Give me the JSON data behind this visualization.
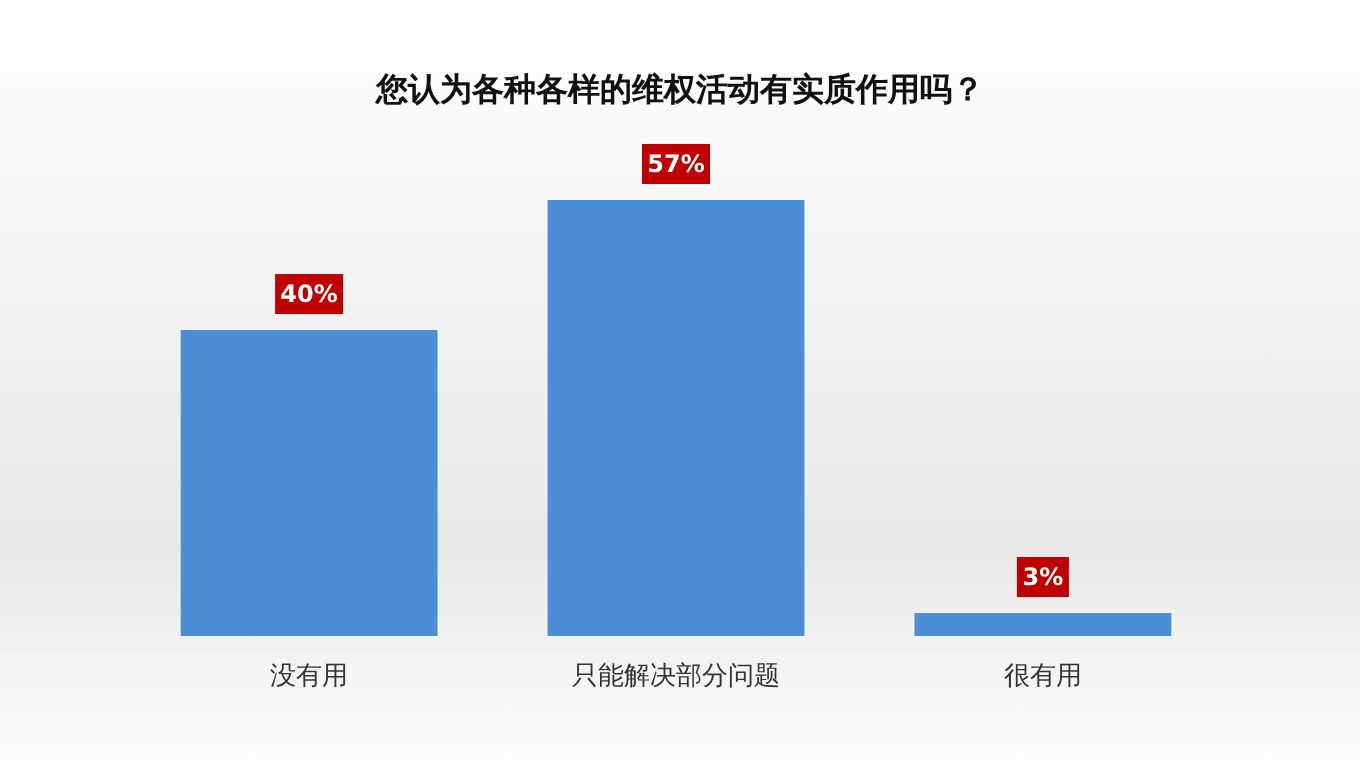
{
  "chart_data": {
    "type": "bar",
    "title": "您认为各种各样的维权活动有实质作用吗？",
    "categories": [
      "没有用",
      "只能解决部分问题",
      "很有用"
    ],
    "values": [
      40,
      57,
      3
    ],
    "value_labels": [
      "40%",
      "57%",
      "3%"
    ],
    "color": "#4a8fd4"
  }
}
